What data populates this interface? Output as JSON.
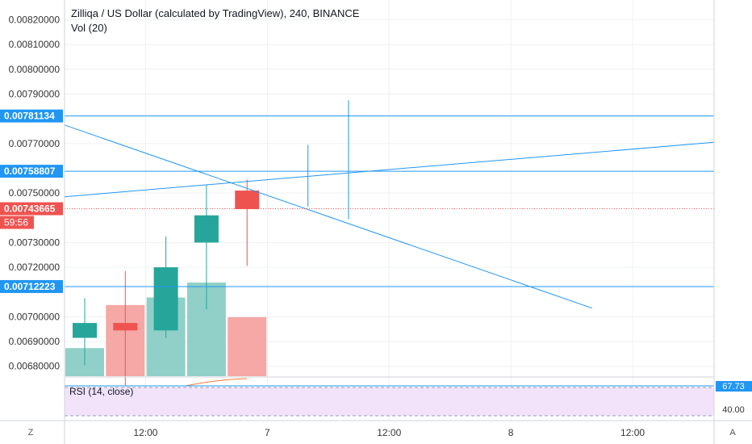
{
  "header": {
    "title": "Zilliqa / US Dollar (calculated by TradingView), 240, BINANCE",
    "vol_label": "Vol (20)"
  },
  "rsi": {
    "label": "RSI (14, close)",
    "value_badge": "67.73",
    "level_label": "40.00",
    "value": 67.73
  },
  "footer": {
    "left_button": "Z",
    "right_button": "A"
  },
  "colors": {
    "up": "#26a69a",
    "down": "#ef5350",
    "vol_up": "#90d0c8",
    "vol_down": "#f5a8a6",
    "line": "#2196f3",
    "price_badge": "#ef5350",
    "rsi_fill": "#f2e3fb"
  },
  "chart_data": {
    "type": "candlestick",
    "title": "Zilliqa / US Dollar (calculated by TradingView), 240, BINANCE",
    "ylim": [
      0.00676,
      0.00828
    ],
    "y_ticks": [
      "0.00820000",
      "0.00810000",
      "0.00800000",
      "0.00790000",
      "0.00770000",
      "0.00750000",
      "0.00730000",
      "0.00720000",
      "0.00700000",
      "0.00690000",
      "0.00680000"
    ],
    "x_ticks": [
      {
        "label": "12:00",
        "bar": 1.5
      },
      {
        "label": "7",
        "bar": 4.5
      },
      {
        "label": "12:00",
        "bar": 7.5
      },
      {
        "label": "8",
        "bar": 10.5
      },
      {
        "label": "12:00",
        "bar": 13.5
      }
    ],
    "candles": [
      {
        "open": 0.006915,
        "high": 0.007075,
        "low": 0.006805,
        "close": 0.006975,
        "volume": 0.3
      },
      {
        "open": 0.006975,
        "high": 0.007185,
        "low": 0.00672,
        "close": 0.006945,
        "volume": 0.76
      },
      {
        "open": 0.006945,
        "high": 0.007325,
        "low": 0.006915,
        "close": 0.0072,
        "volume": 0.84
      },
      {
        "open": 0.0073,
        "high": 0.007535,
        "low": 0.00703,
        "close": 0.00741,
        "volume": 1.0
      },
      {
        "open": 0.00751,
        "high": 0.007555,
        "low": 0.007205,
        "close": 0.007435,
        "volume": 0.63
      }
    ],
    "wicks": [
      {
        "bar": 5.5,
        "high": 0.007695,
        "low": 0.007445
      },
      {
        "bar": 6.5,
        "high": 0.007875,
        "low": 0.007395
      }
    ],
    "lines": [
      {
        "name": "trend-down",
        "bar1": -0.5,
        "y1": 0.007775,
        "bar2": 12.5,
        "y2": 0.007035
      },
      {
        "name": "trend-up",
        "bar1": -0.5,
        "y1": 0.007485,
        "bar2": 15.5,
        "y2": 0.007705
      }
    ],
    "levels": [
      {
        "value": 0.00781134,
        "label": "0.00781134",
        "color": "#2196f3"
      },
      {
        "value": 0.00758807,
        "label": "0.00758807",
        "color": "#2196f3"
      },
      {
        "value": 0.00712223,
        "label": "0.00712223",
        "color": "#2196f3"
      }
    ],
    "last_price": {
      "value": 0.00743665,
      "label": "0.00743665",
      "countdown": "59:56"
    }
  }
}
